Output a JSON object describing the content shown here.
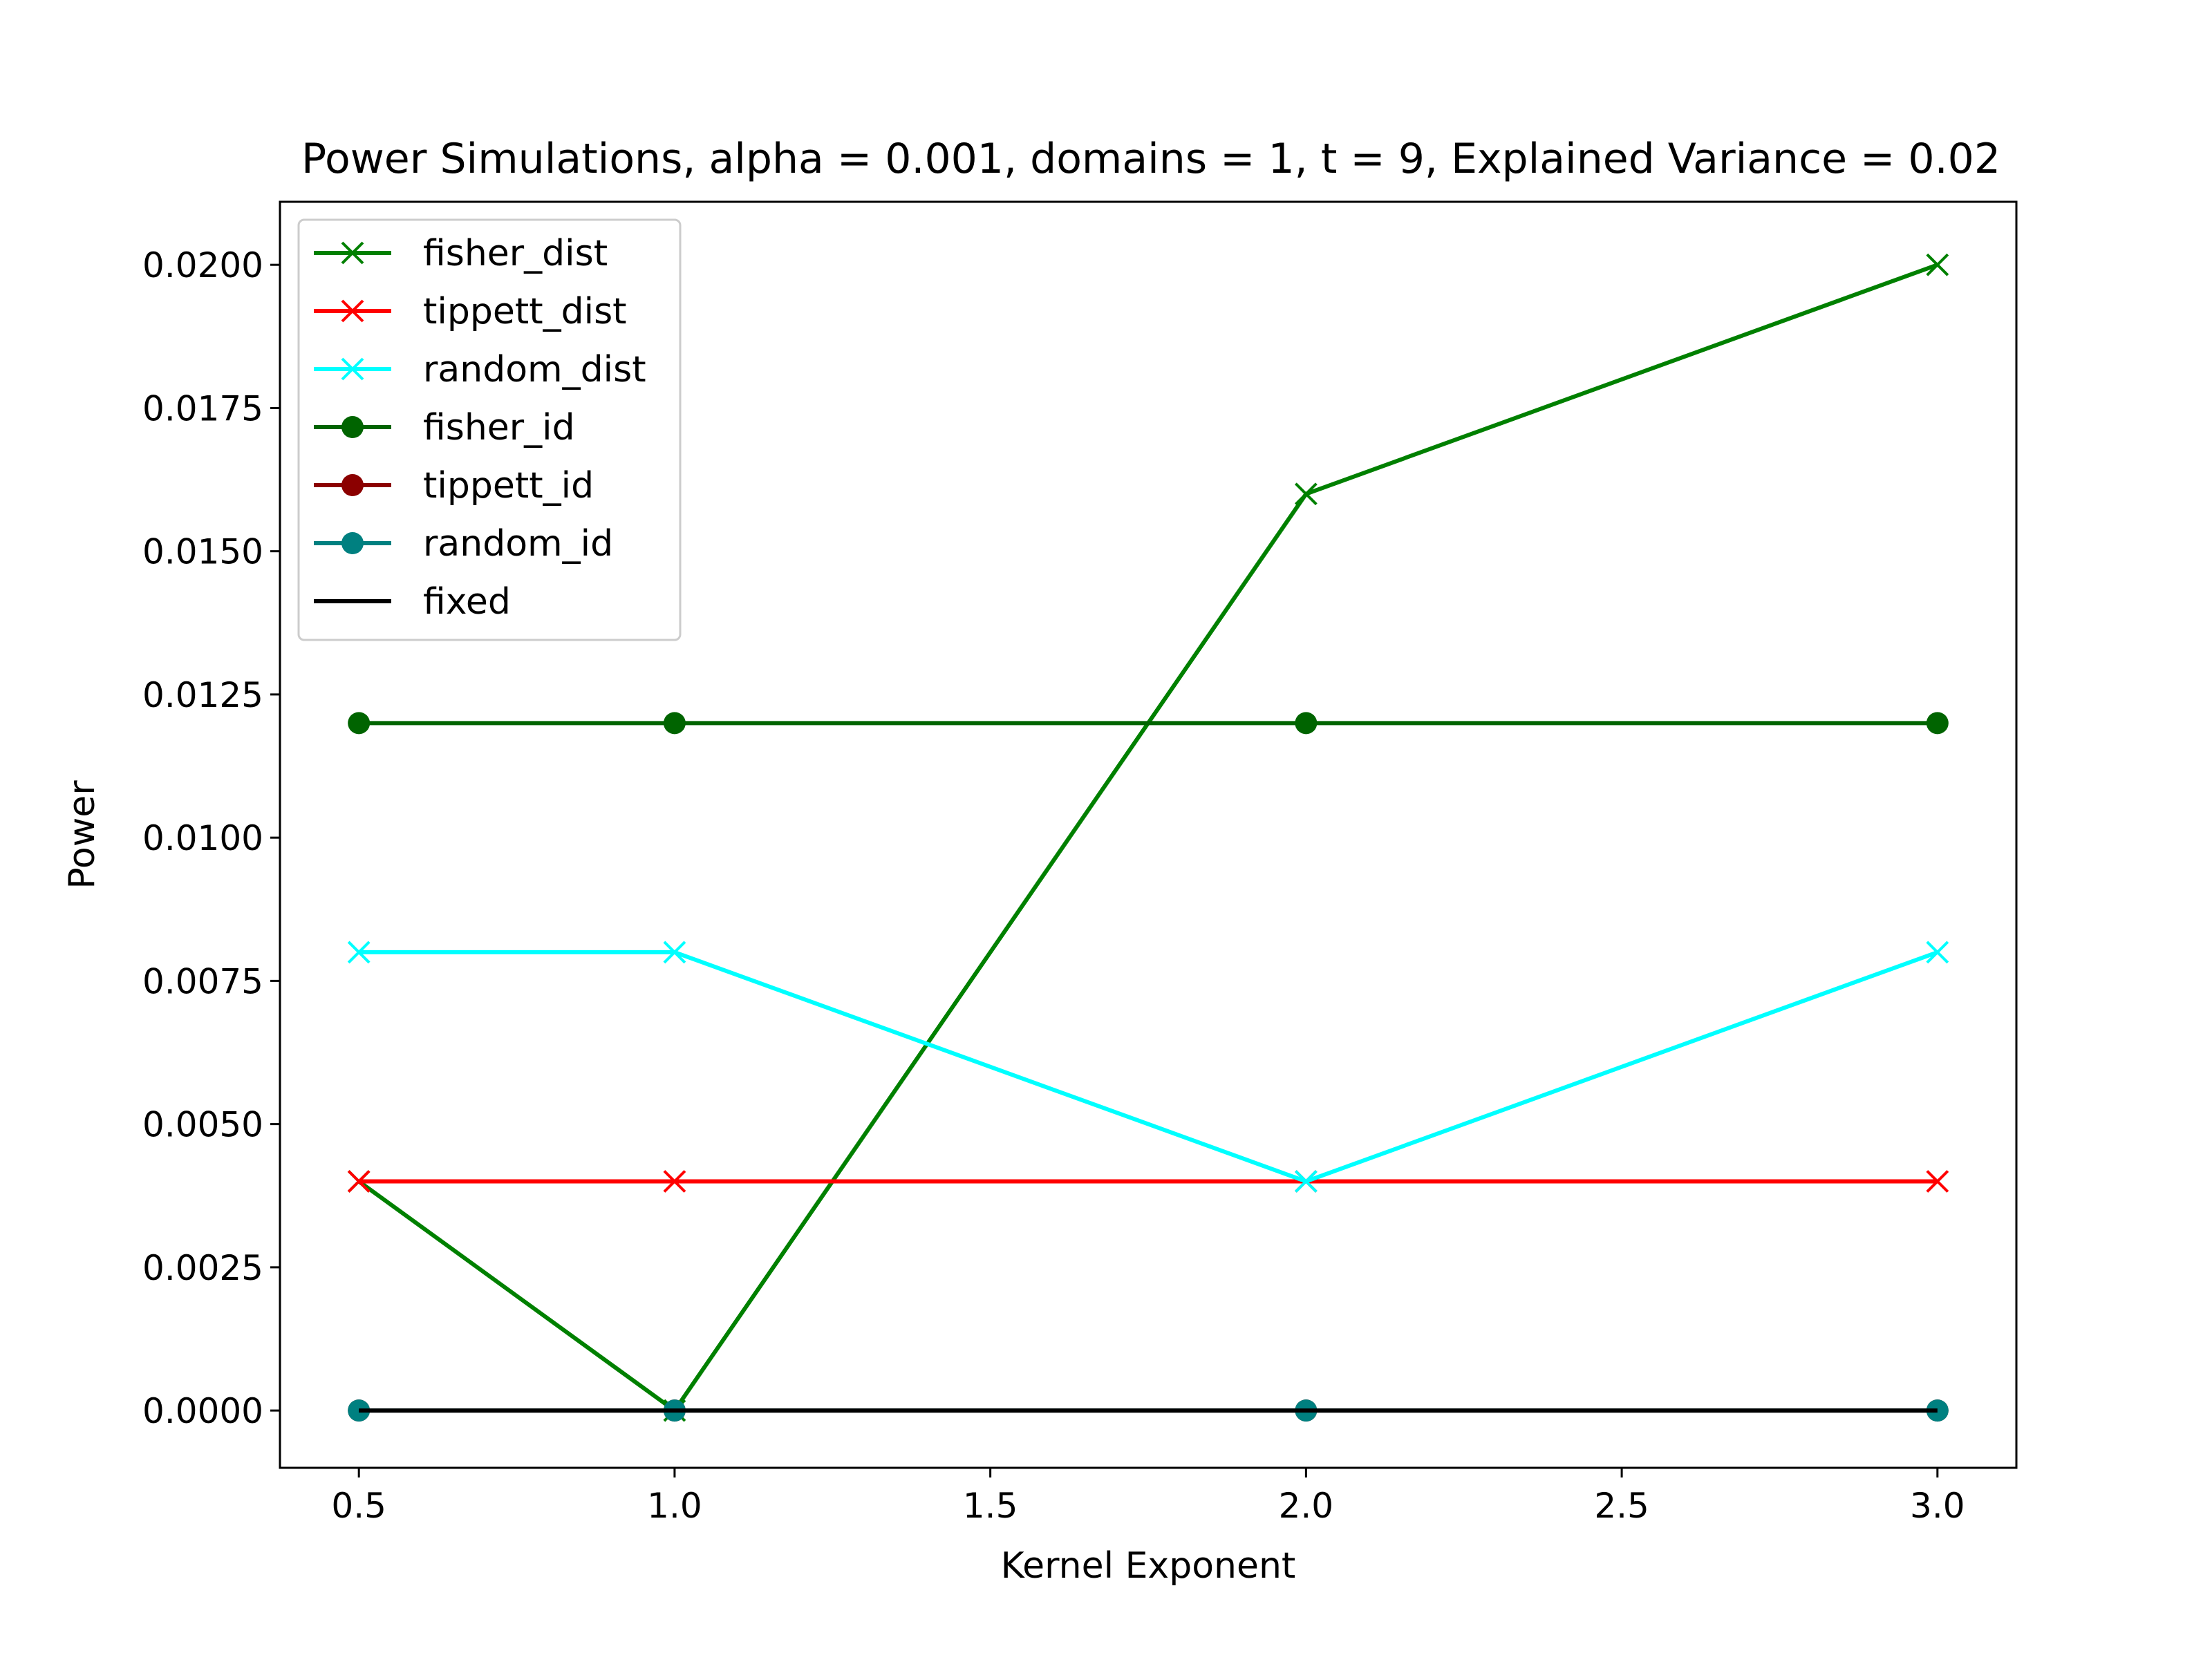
{
  "chart_data": {
    "type": "line",
    "title": "Power Simulations, alpha = 0.001, domains = 1, t = 9, Explained Variance = 0.02",
    "xlabel": "Kernel Exponent",
    "ylabel": "Power",
    "xlim": [
      0.375,
      3.125
    ],
    "ylim": [
      -0.001,
      0.0211
    ],
    "x": [
      0.5,
      1.0,
      2.0,
      3.0
    ],
    "xticks": [
      {
        "value": 0.5,
        "label": "0.5"
      },
      {
        "value": 1.0,
        "label": "1.0"
      },
      {
        "value": 1.5,
        "label": "1.5"
      },
      {
        "value": 2.0,
        "label": "2.0"
      },
      {
        "value": 2.5,
        "label": "2.5"
      },
      {
        "value": 3.0,
        "label": "3.0"
      }
    ],
    "yticks": [
      {
        "value": 0.0,
        "label": "0.0000"
      },
      {
        "value": 0.0025,
        "label": "0.0025"
      },
      {
        "value": 0.005,
        "label": "0.0050"
      },
      {
        "value": 0.0075,
        "label": "0.0075"
      },
      {
        "value": 0.01,
        "label": "0.0100"
      },
      {
        "value": 0.0125,
        "label": "0.0125"
      },
      {
        "value": 0.015,
        "label": "0.0150"
      },
      {
        "value": 0.0175,
        "label": "0.0175"
      },
      {
        "value": 0.02,
        "label": "0.0200"
      }
    ],
    "grid": false,
    "legend_position": "upper-left",
    "series": [
      {
        "name": "fisher_dist",
        "values": [
          0.004,
          0.0,
          0.016,
          0.02
        ],
        "color": "#008000",
        "marker": "x"
      },
      {
        "name": "tippett_dist",
        "values": [
          0.004,
          0.004,
          0.004,
          0.004
        ],
        "color": "#ff0000",
        "marker": "x"
      },
      {
        "name": "random_dist",
        "values": [
          0.008,
          0.008,
          0.004,
          0.008
        ],
        "color": "#00ffff",
        "marker": "x"
      },
      {
        "name": "fisher_id",
        "values": [
          0.012,
          0.012,
          0.012,
          0.012
        ],
        "color": "#006400",
        "marker": "o"
      },
      {
        "name": "tippett_id",
        "values": [
          0.0,
          0.0,
          0.0,
          0.0
        ],
        "color": "#8b0000",
        "marker": "o"
      },
      {
        "name": "random_id",
        "values": [
          0.0,
          0.0,
          0.0,
          0.0
        ],
        "color": "#008080",
        "marker": "o"
      },
      {
        "name": "fixed",
        "values": [
          0.0,
          0.0,
          0.0,
          0.0
        ],
        "color": "#000000",
        "marker": "none"
      }
    ]
  }
}
